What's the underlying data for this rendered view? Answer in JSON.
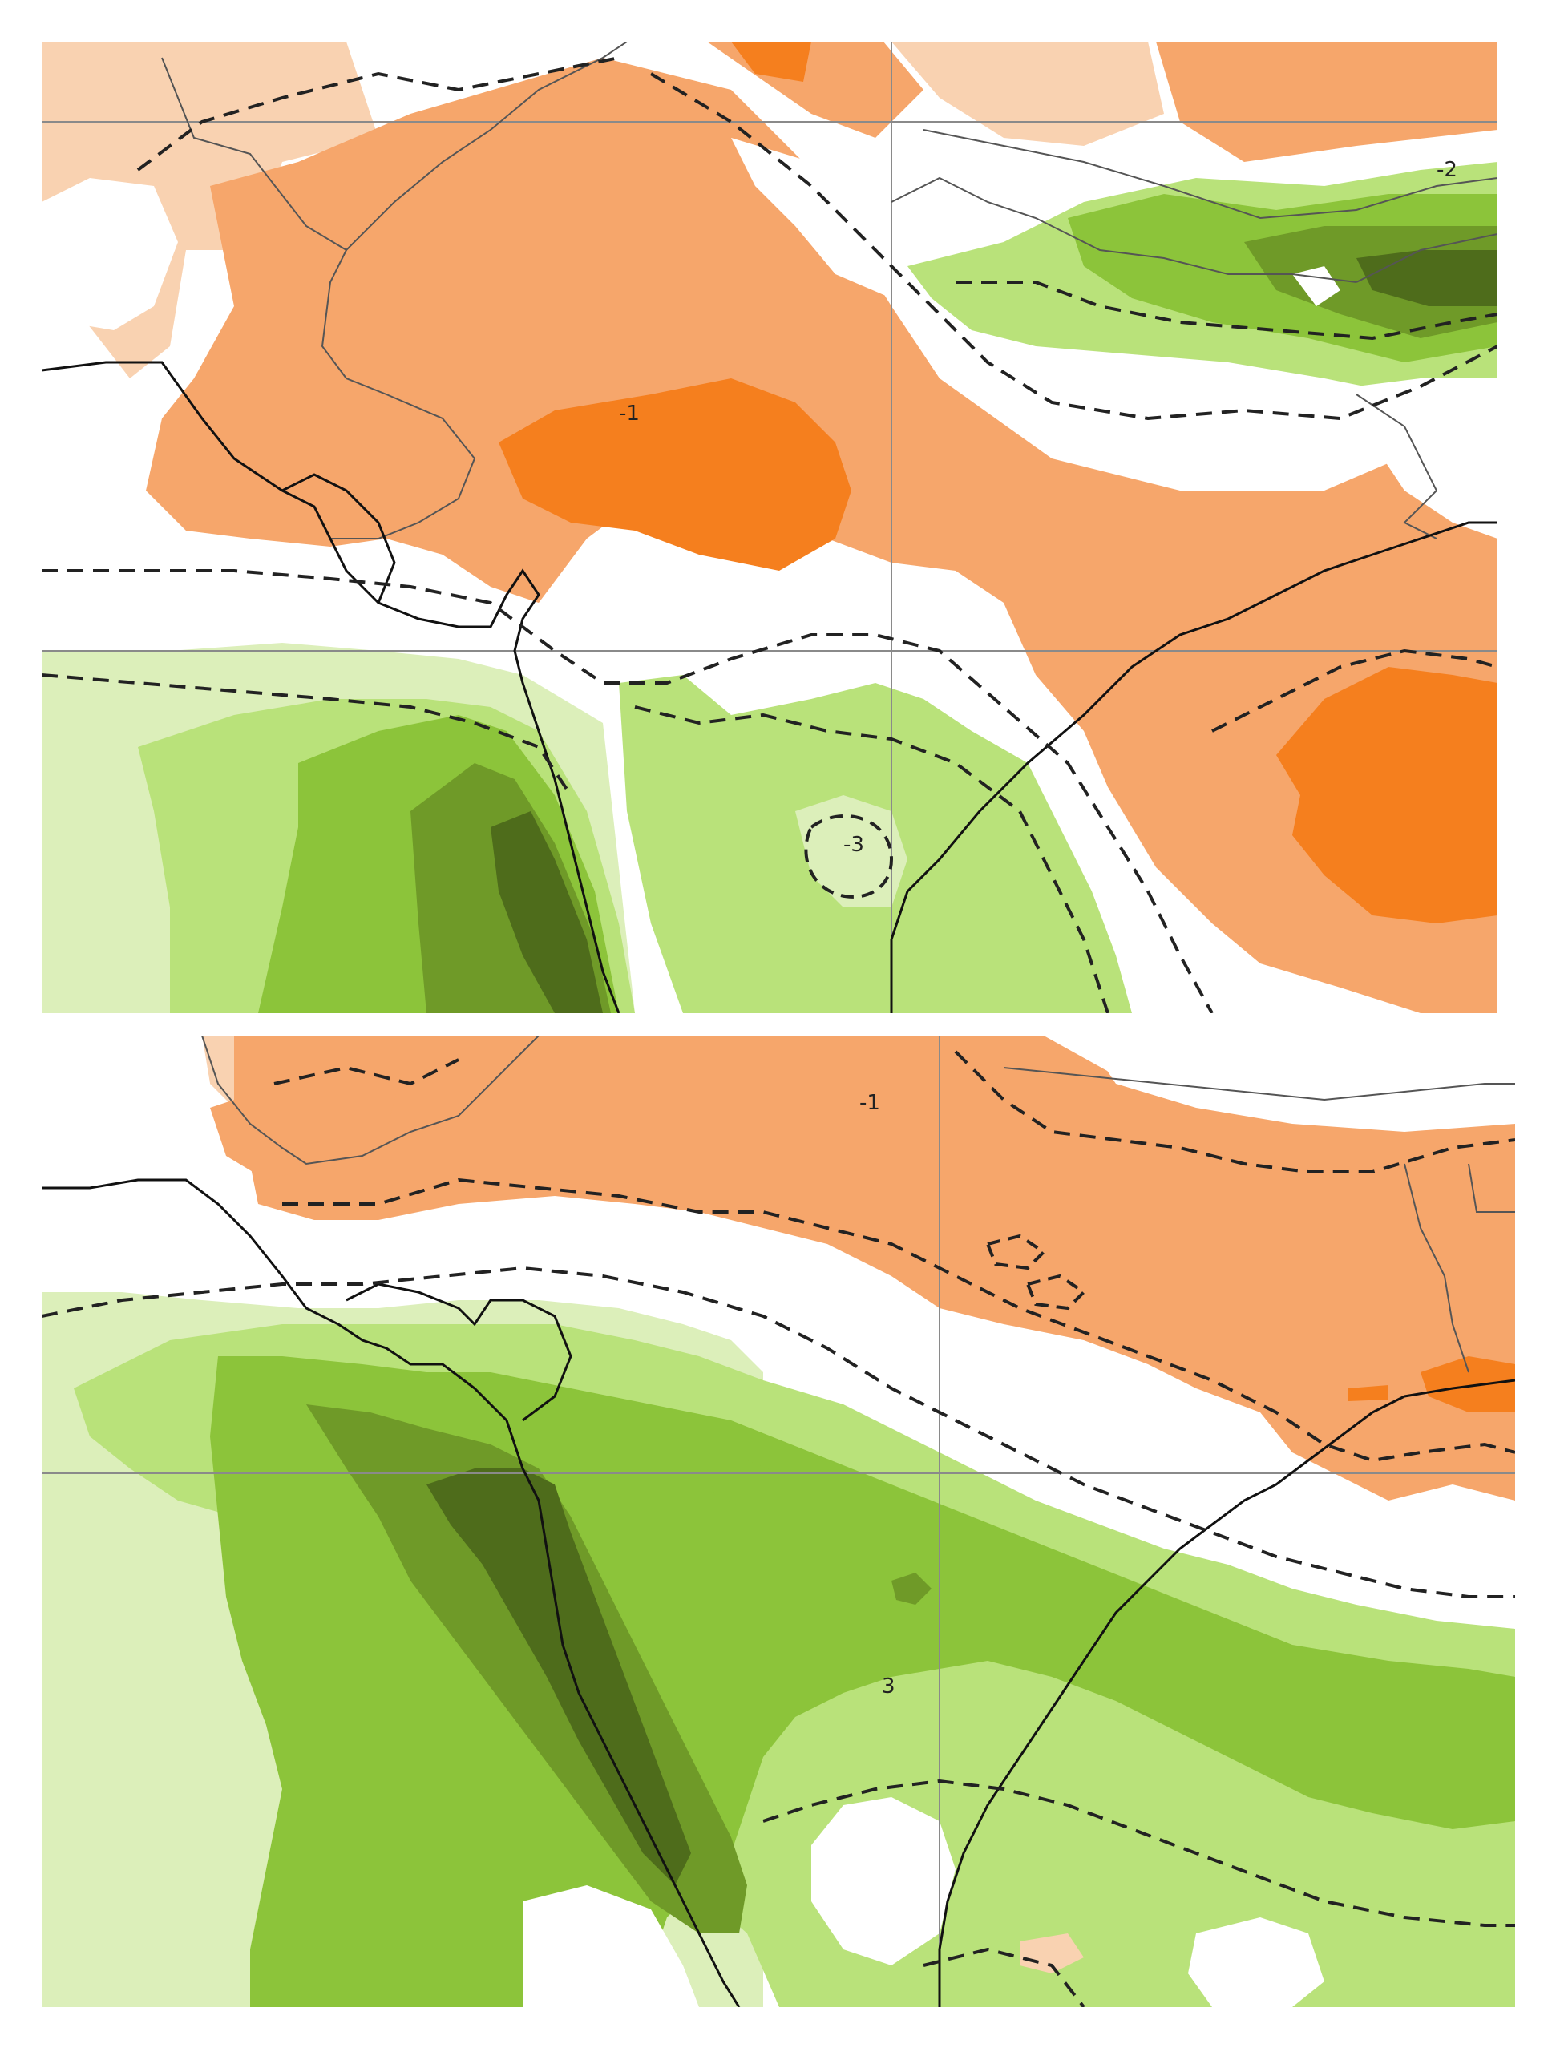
{
  "palette": {
    "orange_light": "#f9d2b1",
    "orange_mid": "#f6a66b",
    "orange_strong": "#f57f1e",
    "green_pale": "#dcefba",
    "green_light": "#b9e27a",
    "green_mid": "#8cc43a",
    "green_dark": "#6f9a28",
    "green_deep": "#4e6c1b",
    "coast": "#111111",
    "border": "#555555",
    "grid": "#8a8a8a",
    "dashed_contour": "#222222"
  },
  "panels": [
    {
      "name": "top-panel",
      "labels": [
        "-1",
        "-3",
        "-2"
      ]
    },
    {
      "name": "bottom-panel",
      "labels": [
        "-1",
        "3"
      ]
    }
  ]
}
